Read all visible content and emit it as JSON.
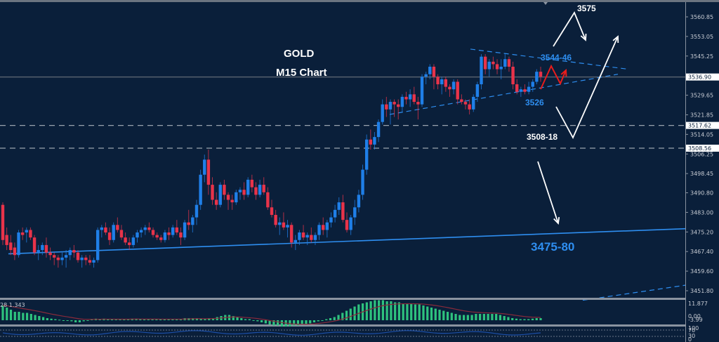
{
  "chart_data": {
    "type": "candlestick",
    "title": "GOLD",
    "subtitle": "M15 Chart",
    "symbol": "GOLD",
    "timeframe": "M15",
    "xlabel": "",
    "ylabel": "",
    "ylim": [
      3448.0,
      3564.0
    ],
    "grid": false,
    "colors": {
      "background": "#0a1f3a",
      "bull": "#1f7fe8",
      "bear": "#e8334a",
      "trendline": "#2e8ef0",
      "annotation_white": "#ffffff",
      "annotation_red": "#e81c1c",
      "macd_hist": "#2ec27e",
      "macd_signal": "#8a2a3a",
      "rsi_line": "#1c4fa8",
      "axis_text": "#c8ccd4",
      "price_line": "#8090a0"
    },
    "price_axis_ticks": [
      "3560.85",
      "3553.05",
      "3545.25",
      "3529.65",
      "3521.85",
      "3514.05",
      "3506.25",
      "3498.45",
      "3490.80",
      "3483.00",
      "3475.20",
      "3467.40",
      "3459.60",
      "3451.80"
    ],
    "price_axis_values": [
      3560.85,
      3553.05,
      3545.25,
      3529.65,
      3521.85,
      3514.05,
      3506.25,
      3498.45,
      3490.8,
      3483.0,
      3475.2,
      3467.4,
      3459.6,
      3451.8
    ],
    "highlighted_levels": [
      {
        "label": "3536.90",
        "value": 3536.9,
        "style": "solid",
        "type": "current-price"
      },
      {
        "label": "3517.62",
        "value": 3517.62,
        "style": "dashed",
        "type": "horizontal-line"
      },
      {
        "label": "3508.56",
        "value": 3508.56,
        "style": "dashed",
        "type": "horizontal-line"
      }
    ],
    "annotations": [
      {
        "text": "3575",
        "color": "white",
        "meaning": "upside target"
      },
      {
        "text": "3544-46",
        "color": "blue",
        "meaning": "resistance"
      },
      {
        "text": "3526",
        "color": "blue",
        "meaning": "support"
      },
      {
        "text": "3508-18",
        "color": "white",
        "meaning": "support zone"
      },
      {
        "text": "3475-80",
        "color": "blue",
        "meaning": "major support"
      }
    ],
    "candles_approx_ohlc": [
      [
        3486,
        3487,
        3470,
        3472
      ],
      [
        3474,
        3477,
        3468,
        3470
      ],
      [
        3471,
        3474,
        3466,
        3468
      ],
      [
        3469,
        3471,
        3464,
        3466
      ],
      [
        3466,
        3476,
        3465,
        3475
      ],
      [
        3475,
        3477,
        3472,
        3474
      ],
      [
        3475,
        3477,
        3471,
        3476
      ],
      [
        3476,
        3477,
        3472,
        3473
      ],
      [
        3473,
        3474,
        3466,
        3467
      ],
      [
        3467,
        3470,
        3464,
        3468
      ],
      [
        3468,
        3471,
        3466,
        3470
      ],
      [
        3470,
        3473,
        3465,
        3467
      ],
      [
        3467,
        3469,
        3464,
        3466
      ],
      [
        3466,
        3467,
        3462,
        3465
      ],
      [
        3465,
        3466,
        3461,
        3464
      ],
      [
        3464,
        3467,
        3462,
        3465
      ],
      [
        3465,
        3468,
        3461,
        3466
      ],
      [
        3466,
        3469,
        3464,
        3468
      ],
      [
        3468,
        3470,
        3465,
        3467
      ],
      [
        3467,
        3468,
        3463,
        3464
      ],
      [
        3464,
        3466,
        3461,
        3465
      ],
      [
        3465,
        3466,
        3462,
        3464
      ],
      [
        3464,
        3466,
        3462,
        3463
      ],
      [
        3463,
        3465,
        3461,
        3464
      ],
      [
        3464,
        3477,
        3463,
        3476
      ],
      [
        3476,
        3478,
        3473,
        3477
      ],
      [
        3477,
        3479,
        3474,
        3475
      ],
      [
        3475,
        3477,
        3470,
        3472
      ],
      [
        3472,
        3479,
        3471,
        3478
      ],
      [
        3478,
        3481,
        3475,
        3476
      ],
      [
        3476,
        3478,
        3472,
        3473
      ],
      [
        3473,
        3475,
        3470,
        3471
      ],
      [
        3471,
        3473,
        3468,
        3470
      ],
      [
        3470,
        3474,
        3469,
        3473
      ],
      [
        3473,
        3476,
        3471,
        3475
      ],
      [
        3475,
        3477,
        3473,
        3476
      ],
      [
        3476,
        3478,
        3474,
        3477
      ],
      [
        3477,
        3479,
        3475,
        3476
      ],
      [
        3476,
        3477,
        3473,
        3474
      ],
      [
        3474,
        3475,
        3472,
        3473
      ],
      [
        3473,
        3474,
        3471,
        3472
      ],
      [
        3472,
        3476,
        3471,
        3475
      ],
      [
        3475,
        3477,
        3472,
        3474
      ],
      [
        3474,
        3478,
        3473,
        3477
      ],
      [
        3477,
        3480,
        3474,
        3475
      ],
      [
        3475,
        3477,
        3470,
        3473
      ],
      [
        3473,
        3480,
        3472,
        3479
      ],
      [
        3479,
        3484,
        3476,
        3478
      ],
      [
        3478,
        3482,
        3475,
        3481
      ],
      [
        3481,
        3488,
        3478,
        3486
      ],
      [
        3486,
        3500,
        3484,
        3498
      ],
      [
        3498,
        3506,
        3495,
        3504
      ],
      [
        3504,
        3508,
        3490,
        3494
      ],
      [
        3494,
        3497,
        3486,
        3488
      ],
      [
        3488,
        3491,
        3484,
        3486
      ],
      [
        3486,
        3495,
        3485,
        3494
      ],
      [
        3494,
        3496,
        3488,
        3490
      ],
      [
        3490,
        3491,
        3484,
        3488
      ],
      [
        3488,
        3490,
        3484,
        3487
      ],
      [
        3487,
        3492,
        3486,
        3491
      ],
      [
        3491,
        3493,
        3488,
        3492
      ],
      [
        3492,
        3495,
        3488,
        3490
      ],
      [
        3490,
        3497,
        3489,
        3496
      ],
      [
        3496,
        3498,
        3491,
        3493
      ],
      [
        3493,
        3495,
        3488,
        3490
      ],
      [
        3490,
        3496,
        3489,
        3494
      ],
      [
        3494,
        3497,
        3490,
        3491
      ],
      [
        3491,
        3493,
        3484,
        3485
      ],
      [
        3485,
        3488,
        3481,
        3482
      ],
      [
        3482,
        3484,
        3477,
        3478
      ],
      [
        3478,
        3481,
        3474,
        3479
      ],
      [
        3479,
        3483,
        3476,
        3477
      ],
      [
        3477,
        3480,
        3473,
        3478
      ],
      [
        3478,
        3479,
        3469,
        3471
      ],
      [
        3471,
        3474,
        3468,
        3472
      ],
      [
        3472,
        3476,
        3470,
        3475
      ],
      [
        3475,
        3478,
        3472,
        3473
      ],
      [
        3473,
        3475,
        3470,
        3474
      ],
      [
        3474,
        3477,
        3471,
        3472
      ],
      [
        3472,
        3475,
        3470,
        3474
      ],
      [
        3474,
        3479,
        3472,
        3478
      ],
      [
        3478,
        3481,
        3474,
        3476
      ],
      [
        3476,
        3480,
        3473,
        3479
      ],
      [
        3479,
        3483,
        3477,
        3481
      ],
      [
        3481,
        3486,
        3479,
        3484
      ],
      [
        3484,
        3489,
        3482,
        3487
      ],
      [
        3487,
        3490,
        3479,
        3480
      ],
      [
        3480,
        3483,
        3475,
        3476
      ],
      [
        3476,
        3482,
        3474,
        3481
      ],
      [
        3481,
        3488,
        3478,
        3485
      ],
      [
        3485,
        3492,
        3483,
        3490
      ],
      [
        3490,
        3502,
        3488,
        3500
      ],
      [
        3500,
        3514,
        3498,
        3512
      ],
      [
        3512,
        3516,
        3508,
        3510
      ],
      [
        3510,
        3515,
        3508,
        3513
      ],
      [
        3513,
        3520,
        3511,
        3519
      ],
      [
        3519,
        3528,
        3518,
        3526
      ],
      [
        3526,
        3529,
        3521,
        3524
      ],
      [
        3524,
        3528,
        3518,
        3527
      ],
      [
        3527,
        3528,
        3521,
        3526
      ],
      [
        3526,
        3528,
        3520,
        3525
      ],
      [
        3525,
        3530,
        3523,
        3529
      ],
      [
        3529,
        3531,
        3526,
        3528
      ],
      [
        3528,
        3532,
        3525,
        3530
      ],
      [
        3530,
        3533,
        3526,
        3527
      ],
      [
        3527,
        3529,
        3520,
        3526
      ],
      [
        3526,
        3538,
        3525,
        3537
      ],
      [
        3537,
        3539,
        3534,
        3538
      ],
      [
        3538,
        3542,
        3536,
        3541
      ],
      [
        3541,
        3542,
        3532,
        3537
      ],
      [
        3537,
        3538,
        3532,
        3534
      ],
      [
        3534,
        3537,
        3530,
        3536
      ],
      [
        3536,
        3537,
        3531,
        3533
      ],
      [
        3533,
        3534,
        3529,
        3532
      ],
      [
        3532,
        3536,
        3530,
        3535
      ],
      [
        3535,
        3536,
        3526,
        3528
      ],
      [
        3528,
        3530,
        3526,
        3527
      ],
      [
        3527,
        3528,
        3524,
        3526
      ],
      [
        3526,
        3528,
        3522,
        3524
      ],
      [
        3524,
        3530,
        3523,
        3529
      ],
      [
        3529,
        3535,
        3527,
        3534
      ],
      [
        3534,
        3546,
        3532,
        3545
      ],
      [
        3545,
        3546,
        3538,
        3540
      ],
      [
        3540,
        3544,
        3537,
        3543
      ],
      [
        3543,
        3545,
        3540,
        3542
      ],
      [
        3542,
        3544,
        3538,
        3540
      ],
      [
        3540,
        3544,
        3536,
        3541
      ],
      [
        3541,
        3546,
        3540,
        3544
      ],
      [
        3544,
        3545,
        3539,
        3541
      ],
      [
        3541,
        3543,
        3532,
        3534
      ],
      [
        3534,
        3536,
        3530,
        3531
      ],
      [
        3531,
        3533,
        3529,
        3532
      ],
      [
        3532,
        3534,
        3530,
        3531
      ],
      [
        3531,
        3535,
        3530,
        3533
      ],
      [
        3533,
        3536,
        3531,
        3535
      ],
      [
        3535,
        3540,
        3534,
        3539
      ],
      [
        3539,
        3541,
        3535,
        3537
      ]
    ],
    "trendlines": [
      {
        "name": "major-support",
        "style": "solid",
        "from": [
          12,
          3466.5
        ],
        "to": [
          976,
          3476.5
        ]
      },
      {
        "name": "triangle-upper",
        "style": "dashed",
        "from": [
          670,
          3548
        ],
        "to": [
          895,
          3540
        ]
      },
      {
        "name": "triangle-lower",
        "style": "dashed",
        "from": [
          555,
          3522
        ],
        "to": [
          880,
          3538
        ]
      },
      {
        "name": "long-channel",
        "style": "dashed",
        "from": [
          830,
          3448
        ],
        "to": [
          976,
          3454
        ]
      }
    ],
    "indicators": [
      {
        "name": "MACD",
        "label": "28 1.343",
        "axis_ticks": [
          "11.877",
          "0.00",
          "-3.99"
        ]
      },
      {
        "name": "RSI",
        "axis_ticks": [
          "100",
          "70",
          "30",
          "0"
        ]
      }
    ]
  }
}
